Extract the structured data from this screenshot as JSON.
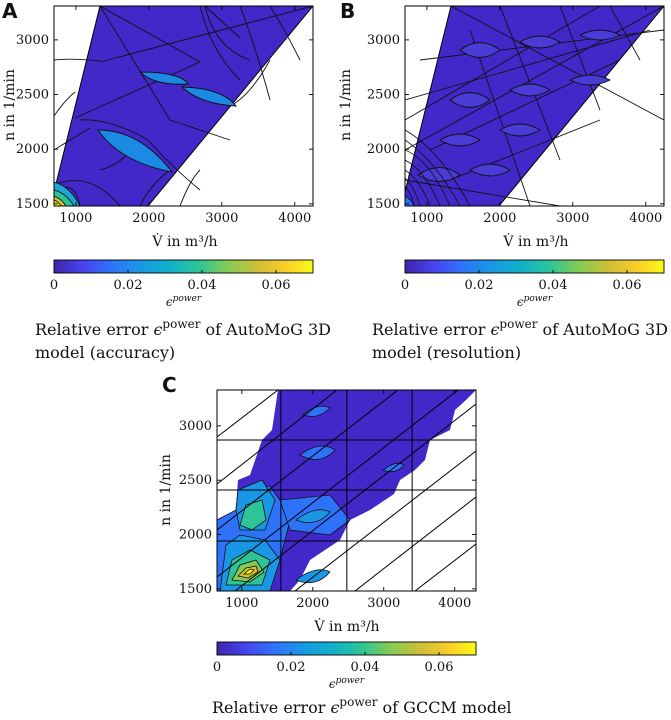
{
  "chart_data": [
    {
      "panel": "A",
      "type": "heatmap",
      "plot_kind": "filled-contour",
      "xlabel": "V̇ in m³/h",
      "ylabel": "n in 1/min",
      "xlim": [
        700,
        4250
      ],
      "ylim": [
        1480,
        3310
      ],
      "xticks": [
        1000,
        2000,
        3000,
        4000
      ],
      "yticks": [
        1500,
        2000,
        2500,
        3000
      ],
      "xtick_labels": [
        "1000",
        "2000",
        "3000",
        "4000"
      ],
      "ytick_labels": [
        "1500",
        "2000",
        "2500",
        "3000"
      ],
      "domain_boundary": [
        [
          700,
          1480
        ],
        [
          1960,
          1480
        ],
        [
          4250,
          3310
        ],
        [
          2400,
          3310
        ],
        [
          700,
          1550
        ]
      ],
      "colorbar": {
        "label": "ϵpower",
        "min": 0,
        "max": 0.07,
        "ticks": [
          0,
          0.02,
          0.04,
          0.06
        ],
        "tick_labels": [
          "0",
          "0.02",
          "0.04",
          "0.06"
        ]
      },
      "caption_parts": [
        "Relative error ",
        "ϵ",
        "power",
        " of AutoMoG 3D",
        "model (accuracy)"
      ]
    },
    {
      "panel": "B",
      "type": "heatmap",
      "plot_kind": "filled-contour",
      "xlabel": "V̇ in m³/h",
      "ylabel": "n in 1/min",
      "xlim": [
        700,
        4250
      ],
      "ylim": [
        1480,
        3310
      ],
      "xticks": [
        1000,
        2000,
        3000,
        4000
      ],
      "yticks": [
        1500,
        2000,
        2500,
        3000
      ],
      "xtick_labels": [
        "1000",
        "2000",
        "3000",
        "4000"
      ],
      "ytick_labels": [
        "1500",
        "2000",
        "2500",
        "3000"
      ],
      "domain_boundary": [
        [
          700,
          1480
        ],
        [
          1960,
          1480
        ],
        [
          4250,
          3310
        ],
        [
          2400,
          3310
        ],
        [
          700,
          1550
        ]
      ],
      "colorbar": {
        "label": "ϵpower",
        "min": 0,
        "max": 0.07,
        "ticks": [
          0,
          0.02,
          0.04,
          0.06
        ],
        "tick_labels": [
          "0",
          "0.02",
          "0.04",
          "0.06"
        ]
      },
      "caption_parts": [
        "Relative error ",
        "ϵ",
        "power",
        " of AutoMoG 3D",
        "model (resolution)"
      ]
    },
    {
      "panel": "C",
      "type": "heatmap",
      "plot_kind": "filled-contour",
      "xlabel": "V̇ in m³/h",
      "ylabel": "n in 1/min",
      "xlim": [
        650,
        4300
      ],
      "ylim": [
        1480,
        3330
      ],
      "xticks": [
        1000,
        2000,
        3000,
        4000
      ],
      "yticks": [
        1500,
        2000,
        2500,
        3000
      ],
      "xtick_labels": [
        "1000",
        "2000",
        "3000",
        "4000"
      ],
      "ytick_labels": [
        "1500",
        "2000",
        "2500",
        "3000"
      ],
      "grid_x_lines": [
        650,
        1550,
        2480,
        3400,
        4300
      ],
      "grid_y_lines": [
        1480,
        1940,
        2410,
        2870,
        3330
      ],
      "colorbar": {
        "label": "ϵpower",
        "min": 0,
        "max": 0.07,
        "ticks": [
          0,
          0.02,
          0.04,
          0.06
        ],
        "tick_labels": [
          "0",
          "0.02",
          "0.04",
          "0.06"
        ]
      },
      "caption_parts": [
        "Relative error ",
        "ϵ",
        "power",
        " of GCCM model"
      ]
    }
  ],
  "colors": {
    "cmap": [
      "#3e26a8",
      "#4743f1",
      "#2f72fa",
      "#1997e5",
      "#10b2c9",
      "#2dc597",
      "#83cb53",
      "#d6bf34",
      "#fbcf2a",
      "#f9fb15"
    ],
    "base_fill": "#4227c9"
  }
}
